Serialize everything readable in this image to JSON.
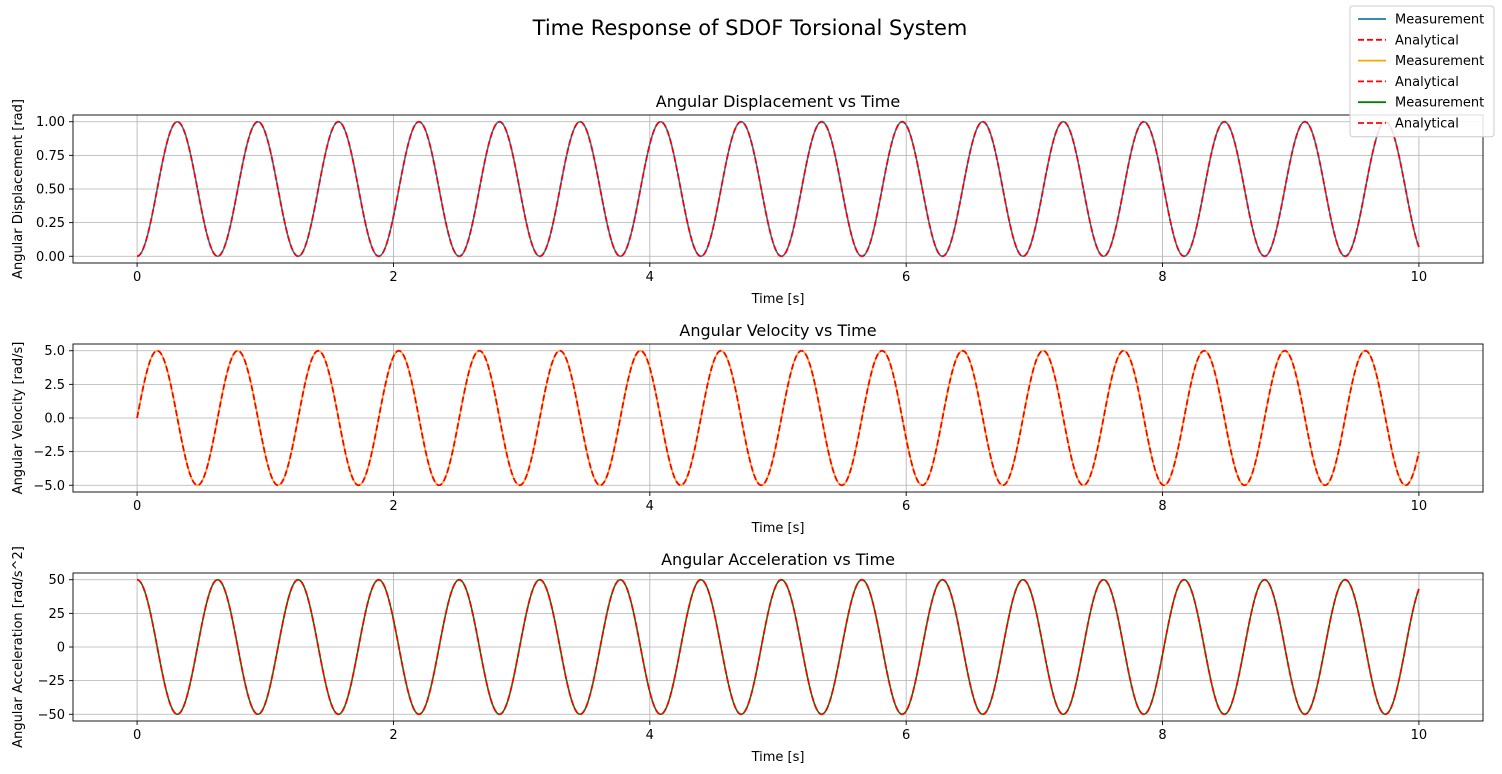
{
  "suptitle": "Time Response of SDOF Torsional System",
  "legend": [
    {
      "label": "Measurement",
      "color": "#1f77b4",
      "dash": false
    },
    {
      "label": "Analytical",
      "color": "#ff0000",
      "dash": true
    },
    {
      "label": "Measurement",
      "color": "#ffa500",
      "dash": false
    },
    {
      "label": "Analytical",
      "color": "#ff0000",
      "dash": true
    },
    {
      "label": "Measurement",
      "color": "#008000",
      "dash": false
    },
    {
      "label": "Analytical",
      "color": "#ff0000",
      "dash": true
    }
  ],
  "chart_data": [
    {
      "type": "line",
      "title": "Angular Displacement vs Time",
      "xlabel": "Time [s]",
      "ylabel": "Angular Displacement [rad]",
      "xlim": [
        -0.5,
        10.5
      ],
      "ylim": [
        -0.05,
        1.05
      ],
      "xticks": [
        0,
        2,
        4,
        6,
        8,
        10
      ],
      "xtick_labels": [
        "0",
        "2",
        "4",
        "6",
        "8",
        "10"
      ],
      "yticks": [
        0,
        0.25,
        0.5,
        0.75,
        1.0
      ],
      "ytick_labels": [
        "0.00",
        "0.25",
        "0.50",
        "0.75",
        "1.00"
      ],
      "grid": true,
      "x_range": [
        0,
        10
      ],
      "series": [
        {
          "name": "Measurement",
          "color": "#1f77b4",
          "style": "solid",
          "function": "0.5 - 0.5*cos(10*t)"
        },
        {
          "name": "Analytical",
          "color": "#ff0000",
          "style": "dashed",
          "function": "0.5 - 0.5*cos(10*t)"
        }
      ]
    },
    {
      "type": "line",
      "title": "Angular Velocity vs Time",
      "xlabel": "Time [s]",
      "ylabel": "Angular Velocity [rad/s]",
      "xlim": [
        -0.5,
        10.5
      ],
      "ylim": [
        -5.5,
        5.5
      ],
      "xticks": [
        0,
        2,
        4,
        6,
        8,
        10
      ],
      "xtick_labels": [
        "0",
        "2",
        "4",
        "6",
        "8",
        "10"
      ],
      "yticks": [
        -5.0,
        -2.5,
        0,
        2.5,
        5.0
      ],
      "ytick_labels": [
        "−5.0",
        "−2.5",
        "0.0",
        "2.5",
        "5.0"
      ],
      "grid": true,
      "x_range": [
        0,
        10
      ],
      "series": [
        {
          "name": "Measurement",
          "color": "#ffa500",
          "style": "solid",
          "function": "5*sin(10*t)"
        },
        {
          "name": "Analytical",
          "color": "#ff0000",
          "style": "dashed",
          "function": "5*sin(10*t)"
        }
      ]
    },
    {
      "type": "line",
      "title": "Angular Acceleration vs Time",
      "xlabel": "Time [s]",
      "ylabel": "Angular Acceleration [rad/s^2]",
      "xlim": [
        -0.5,
        10.5
      ],
      "ylim": [
        -55,
        55
      ],
      "xticks": [
        0,
        2,
        4,
        6,
        8,
        10
      ],
      "xtick_labels": [
        "0",
        "2",
        "4",
        "6",
        "8",
        "10"
      ],
      "yticks": [
        -50,
        -25,
        0,
        25,
        50
      ],
      "ytick_labels": [
        "−50",
        "−25",
        "0",
        "25",
        "50"
      ],
      "grid": true,
      "x_range": [
        0,
        10
      ],
      "series": [
        {
          "name": "Measurement",
          "color": "#008000",
          "style": "solid",
          "function": "50*cos(10*t)"
        },
        {
          "name": "Analytical",
          "color": "#ff0000",
          "style": "dashed",
          "function": "50*cos(10*t)"
        }
      ]
    }
  ]
}
